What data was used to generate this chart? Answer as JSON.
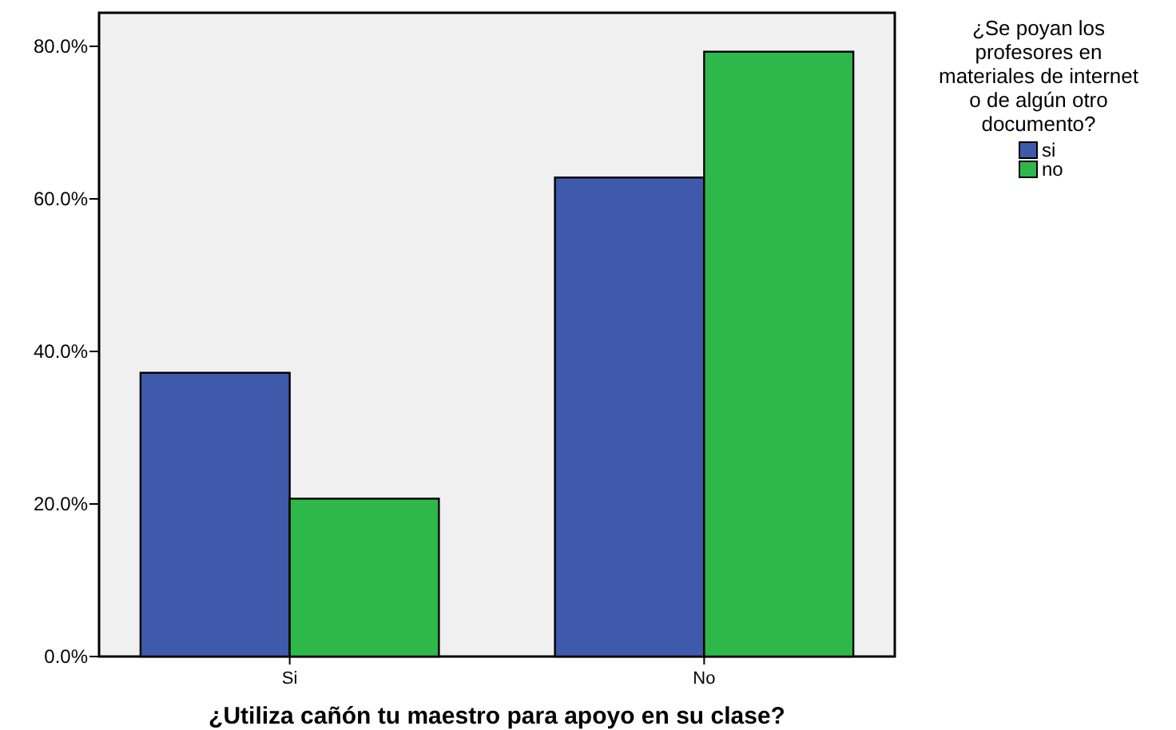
{
  "chart_data": {
    "type": "bar",
    "xlabel": "¿Utiliza cañón tu maestro para apoyo en su clase?",
    "legend_title": "¿Se poyan los\nprofesores en\nmateriales de internet\no de algún otro\ndocumento?",
    "categories": [
      "Si",
      "No"
    ],
    "series": [
      {
        "name": "si",
        "color": "#3f59ab",
        "values": [
          37.2,
          62.8
        ]
      },
      {
        "name": "no",
        "color": "#2eb84a",
        "values": [
          20.7,
          79.3
        ]
      }
    ],
    "ylim": [
      0,
      84.4
    ],
    "yticks": [
      {
        "value": 0,
        "label": "0.0%"
      },
      {
        "value": 20,
        "label": "20.0%"
      },
      {
        "value": 40,
        "label": "40.0%"
      },
      {
        "value": 60,
        "label": "60.0%"
      },
      {
        "value": 80,
        "label": "80.0%"
      }
    ],
    "grid": false,
    "legend": "top right"
  }
}
